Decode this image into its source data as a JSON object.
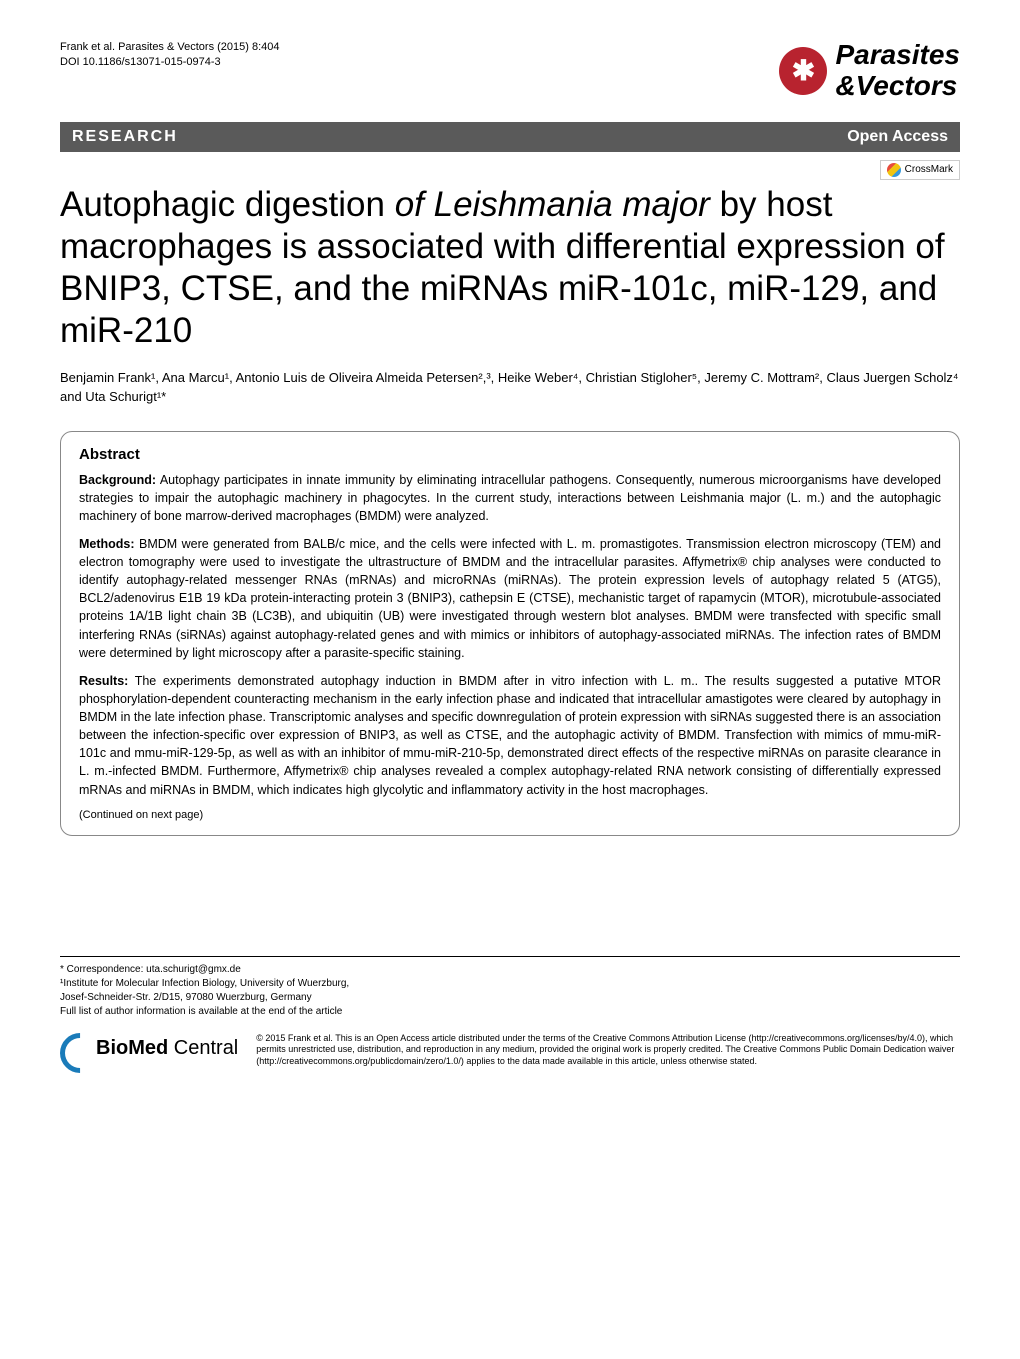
{
  "header": {
    "citation_line1": "Frank et al. Parasites & Vectors  (2015) 8:404",
    "citation_line2": "DOI 10.1186/s13071-015-0974-3",
    "journal_name_line1": "Parasites",
    "journal_name_line2": "&Vectors",
    "logo_glyph": "✱"
  },
  "type_row": {
    "research": "RESEARCH",
    "open_access": "Open Access"
  },
  "crossmark_label": "CrossMark",
  "title": {
    "part1": "Autophagic digestion ",
    "italic1": "of Leishmania major",
    "part2": " by host macrophages is associated with differential expression of BNIP3, CTSE, and the miRNAs miR-101c, miR-129, and miR-210"
  },
  "authors_line": "Benjamin Frank¹, Ana Marcu¹, Antonio Luis de Oliveira Almeida Petersen²,³, Heike Weber⁴, Christian Stigloher⁵, Jeremy C. Mottram², Claus Juergen Scholz⁴ and Uta Schurigt¹*",
  "abstract": {
    "heading": "Abstract",
    "background_label": "Background:",
    "background_text": " Autophagy participates in innate immunity by eliminating intracellular pathogens. Consequently, numerous microorganisms have developed strategies to impair the autophagic machinery in phagocytes. In the current study, interactions between Leishmania major (L. m.) and the autophagic machinery of bone marrow-derived macrophages (BMDM) were analyzed.",
    "methods_label": "Methods:",
    "methods_text": " BMDM were generated from BALB/c mice, and the cells were infected with L. m. promastigotes. Transmission electron microscopy (TEM) and electron tomography were used to investigate the ultrastructure of BMDM and the intracellular parasites. Affymetrix® chip analyses were conducted to identify autophagy-related messenger RNAs (mRNAs) and microRNAs (miRNAs). The protein expression levels of autophagy related 5 (ATG5), BCL2/adenovirus E1B 19 kDa protein-interacting protein 3 (BNIP3), cathepsin E (CTSE), mechanistic target of rapamycin (MTOR), microtubule-associated proteins 1A/1B light chain 3B (LC3B), and ubiquitin (UB) were investigated through western blot analyses. BMDM were transfected with specific small interfering RNAs (siRNAs) against autophagy-related genes and with mimics or inhibitors of autophagy-associated miRNAs. The infection rates of BMDM were determined by light microscopy after a parasite-specific staining.",
    "results_label": "Results:",
    "results_text": " The experiments demonstrated autophagy induction in BMDM after in vitro infection with L. m.. The results suggested a putative MTOR phosphorylation-dependent counteracting mechanism in the early infection phase and indicated that intracellular amastigotes were cleared by autophagy in BMDM in the late infection phase. Transcriptomic analyses and specific downregulation of protein expression with siRNAs suggested there is an association between the infection-specific over expression of BNIP3, as well as CTSE, and the autophagic activity of BMDM. Transfection with mimics of mmu-miR-101c and mmu-miR-129-5p, as well as with an inhibitor of mmu-miR-210-5p, demonstrated direct effects of the respective miRNAs on parasite clearance in L. m.-infected BMDM. Furthermore, Affymetrix® chip analyses revealed a complex autophagy-related RNA network consisting of differentially expressed mRNAs and miRNAs in BMDM, which indicates high glycolytic and inflammatory activity in the host macrophages.",
    "continued": "(Continued on next page)"
  },
  "footer": {
    "correspondence": "* Correspondence: uta.schurigt@gmx.de",
    "affiliation1": "¹Institute for Molecular Infection Biology, University of Wuerzburg,",
    "affiliation2": "Josef-Schneider-Str. 2/D15, 97080 Wuerzburg, Germany",
    "full_list": "Full list of author information is available at the end of the article",
    "bmc_name": "BioMed Central",
    "license": "© 2015 Frank et al. This is an Open Access article distributed under the terms of the Creative Commons Attribution License (http://creativecommons.org/licenses/by/4.0), which permits unrestricted use, distribution, and reproduction in any medium, provided the original work is properly credited. The Creative Commons Public Domain Dedication waiver (http://creativecommons.org/publicdomain/zero/1.0/) applies to the data made available in this article, unless otherwise stated."
  },
  "colors": {
    "logo_bg": "#b8232f",
    "type_bar_bg": "#5a5a5a",
    "bmc_blue": "#1a7bb9"
  }
}
